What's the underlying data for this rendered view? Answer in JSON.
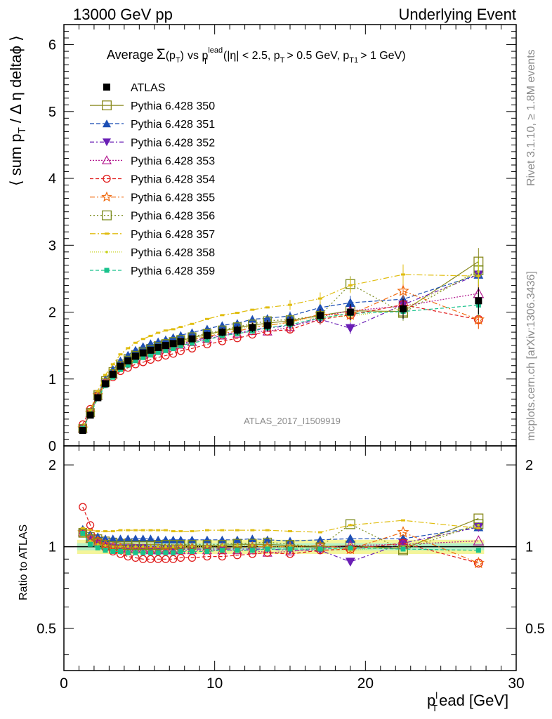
{
  "header": {
    "left": "13000 GeV pp",
    "right": "Underlying Event"
  },
  "plot_title": {
    "prefix": "Average",
    "sigma": "Σ",
    "arg": "(p",
    "arg_sub": "T",
    "arg_close": ")",
    "vs": "vs p",
    "vs_sup": "lead",
    "vs_sub": "T",
    "cuts_a": "(|η| < 2.5, p",
    "cuts_sub1": "T",
    "cuts_b": "> 0.5 GeV, p",
    "cuts_sub2": "T1",
    "cuts_c": "> 1 GeV)"
  },
  "side_text": {
    "rivet": "Rivet 3.1.10, ≥ 1.8M events",
    "mcplots": "mcplots.cern.ch [arXiv:1306.3436]"
  },
  "analysis_label": "ATLAS_2017_I1509919",
  "axes": {
    "main_ylabel": "⟨ sum p",
    "main_ylabel_sub": "T",
    "main_ylabel_rest": "/ Δ η deltaϕ ⟩",
    "ratio_ylabel": "Ratio to ATLAS",
    "xlabel_p": "p",
    "xlabel_sup": "l",
    "xlabel_sub": "T",
    "xlabel_rest": "ead [GeV]",
    "x_ticks": [
      "0",
      "10",
      "20",
      "30"
    ],
    "main_y_ticks": [
      "0",
      "1",
      "2",
      "3",
      "4",
      "5",
      "6"
    ],
    "ratio_y_ticks_left": [
      "0.5",
      "1",
      "2"
    ],
    "ratio_y_ticks_right": [
      "0.5",
      "1",
      "2"
    ]
  },
  "chart_data": {
    "type": "scatter",
    "xlim": [
      0,
      30
    ],
    "ylim_main": [
      0,
      6.3
    ],
    "ylim_ratio_log": [
      0.35,
      2.35
    ],
    "legend_position": "top-left",
    "x": [
      1.25,
      1.75,
      2.25,
      2.75,
      3.25,
      3.75,
      4.25,
      4.75,
      5.25,
      5.75,
      6.25,
      6.75,
      7.25,
      7.75,
      8.5,
      9.5,
      10.5,
      11.5,
      12.5,
      13.5,
      15.0,
      17.0,
      19.0,
      22.5,
      27.5
    ],
    "data": {
      "name": "ATLAS",
      "values": [
        0.23,
        0.46,
        0.72,
        0.93,
        1.07,
        1.19,
        1.27,
        1.34,
        1.39,
        1.43,
        1.47,
        1.5,
        1.53,
        1.56,
        1.6,
        1.65,
        1.7,
        1.73,
        1.77,
        1.8,
        1.85,
        1.95,
        2.0,
        2.05,
        2.17
      ],
      "errors": [
        0.01,
        0.02,
        0.02,
        0.03,
        0.03,
        0.03,
        0.03,
        0.04,
        0.04,
        0.04,
        0.04,
        0.05,
        0.05,
        0.05,
        0.05,
        0.06,
        0.06,
        0.07,
        0.07,
        0.08,
        0.08,
        0.1,
        0.12,
        0.15,
        0.2
      ]
    },
    "ratio_band": {
      "inner": 0.03,
      "outer": 0.06
    },
    "series": [
      {
        "name": "Pythia 6.428 350",
        "color": "#8a8a1e",
        "marker": "open-square",
        "dash": "solid",
        "ratio": [
          1.13,
          1.09,
          1.07,
          1.05,
          1.04,
          1.03,
          1.03,
          1.02,
          1.02,
          1.02,
          1.02,
          1.01,
          1.01,
          1.01,
          1.01,
          1.01,
          1.01,
          1.02,
          1.02,
          1.02,
          1.01,
          1.0,
          1.01,
          0.98,
          1.27
        ]
      },
      {
        "name": "Pythia 6.428 351",
        "color": "#1d4fb5",
        "marker": "filled-triangle-up",
        "dash": "6,3",
        "ratio": [
          1.16,
          1.11,
          1.09,
          1.07,
          1.07,
          1.07,
          1.07,
          1.07,
          1.07,
          1.07,
          1.06,
          1.06,
          1.06,
          1.06,
          1.06,
          1.06,
          1.06,
          1.06,
          1.07,
          1.06,
          1.05,
          1.06,
          1.07,
          1.07,
          1.18
        ]
      },
      {
        "name": "Pythia 6.428 352",
        "color": "#6a1fb5",
        "marker": "filled-triangle-down",
        "dash": "6,3,2,3",
        "ratio": [
          1.12,
          1.06,
          1.03,
          1.01,
          1.0,
          0.99,
          0.99,
          0.99,
          0.99,
          0.98,
          0.98,
          0.98,
          0.98,
          0.98,
          0.98,
          0.98,
          0.98,
          0.98,
          0.98,
          0.98,
          0.97,
          0.97,
          0.88,
          1.03,
          1.18
        ]
      },
      {
        "name": "Pythia 6.428 353",
        "color": "#b3188f",
        "marker": "open-triangle-up",
        "dash": "2,2",
        "ratio": [
          1.13,
          1.07,
          1.04,
          1.02,
          1.0,
          0.99,
          0.98,
          0.98,
          0.98,
          0.97,
          0.97,
          0.97,
          0.97,
          0.97,
          0.97,
          0.97,
          0.97,
          0.97,
          0.97,
          0.95,
          0.96,
          0.99,
          1.01,
          1.02,
          1.05
        ]
      },
      {
        "name": "Pythia 6.428 354",
        "color": "#e01a1a",
        "marker": "open-circle",
        "dash": "5,3",
        "ratio": [
          1.4,
          1.2,
          1.05,
          0.99,
          0.96,
          0.94,
          0.92,
          0.91,
          0.9,
          0.9,
          0.9,
          0.9,
          0.9,
          0.91,
          0.91,
          0.92,
          0.92,
          0.93,
          0.94,
          0.95,
          0.94,
          0.97,
          0.98,
          1.03,
          0.87
        ]
      },
      {
        "name": "Pythia 6.428 355",
        "color": "#f06a0f",
        "marker": "open-star",
        "dash": "7,3,2,3",
        "ratio": [
          1.13,
          1.08,
          1.05,
          1.02,
          1.0,
          0.99,
          0.98,
          0.98,
          0.98,
          0.98,
          0.98,
          0.98,
          0.98,
          0.99,
          0.99,
          0.99,
          0.99,
          0.99,
          1.0,
          1.0,
          1.0,
          1.01,
          0.98,
          1.13,
          0.87
        ]
      },
      {
        "name": "Pythia 6.428 356",
        "color": "#7a8a1a",
        "marker": "open-square",
        "dash": "2,3",
        "ratio": [
          1.12,
          1.07,
          1.04,
          1.02,
          1.01,
          1.01,
          1.01,
          1.01,
          1.01,
          1.01,
          1.01,
          1.02,
          1.02,
          1.02,
          1.02,
          1.02,
          1.02,
          1.03,
          1.03,
          1.04,
          1.02,
          1.0,
          1.21,
          0.97,
          1.21
        ]
      },
      {
        "name": "Pythia 6.428 357",
        "color": "#e0bd10",
        "marker": "dash-dot",
        "dash": "8,3,2,3",
        "ratio": [
          1.17,
          1.15,
          1.14,
          1.14,
          1.14,
          1.15,
          1.15,
          1.15,
          1.15,
          1.15,
          1.15,
          1.15,
          1.14,
          1.14,
          1.14,
          1.15,
          1.15,
          1.15,
          1.15,
          1.15,
          1.14,
          1.13,
          1.2,
          1.25,
          1.17
        ]
      },
      {
        "name": "Pythia 6.428 358",
        "color": "#c6d21a",
        "marker": "dot",
        "dash": "1,2",
        "ratio": [
          1.1,
          1.05,
          1.02,
          1.01,
          1.0,
          1.0,
          1.0,
          1.0,
          1.0,
          1.0,
          1.0,
          1.0,
          1.0,
          1.0,
          1.0,
          1.0,
          1.01,
          1.01,
          1.01,
          1.0,
          1.0,
          0.99,
          0.97,
          1.0,
          1.2
        ]
      },
      {
        "name": "Pythia 6.428 359",
        "color": "#19c28c",
        "marker": "filled-square-small",
        "dash": "5,3",
        "ratio": [
          1.12,
          1.02,
          0.99,
          0.97,
          0.96,
          0.96,
          0.95,
          0.95,
          0.95,
          0.95,
          0.95,
          0.95,
          0.95,
          0.96,
          0.96,
          0.96,
          0.97,
          0.97,
          0.97,
          0.98,
          0.98,
          0.98,
          0.99,
          0.98,
          0.97
        ]
      }
    ]
  }
}
